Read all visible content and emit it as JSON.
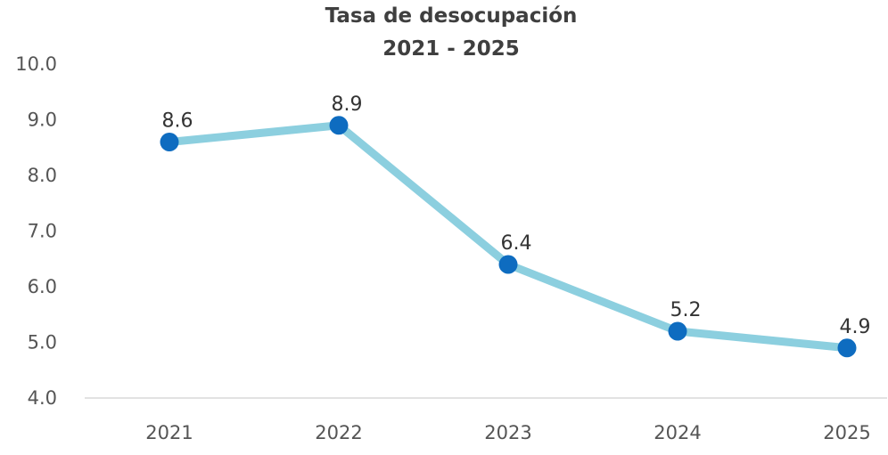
{
  "chart_data": {
    "type": "line",
    "title": "Tasa de desocupación",
    "subtitle": "2021 - 2025",
    "xlabel": "",
    "ylabel": "",
    "categories": [
      "2021",
      "2022",
      "2023",
      "2024",
      "2025"
    ],
    "series": [
      {
        "name": "Tasa de desocupación",
        "values": [
          8.6,
          8.9,
          6.4,
          5.2,
          4.9
        ],
        "labels": [
          "8.6",
          "8.9",
          "6.4",
          "5.2",
          "4.9"
        ]
      }
    ],
    "ylim": [
      4.0,
      10.0
    ],
    "yticks": [
      "4.0",
      "5.0",
      "6.0",
      "7.0",
      "8.0",
      "9.0",
      "10.0"
    ],
    "grid": false,
    "legend": "none"
  },
  "colors": {
    "line": "#8ccfdf",
    "marker": "#0e6cc0",
    "axis": "#d9d9d9"
  }
}
